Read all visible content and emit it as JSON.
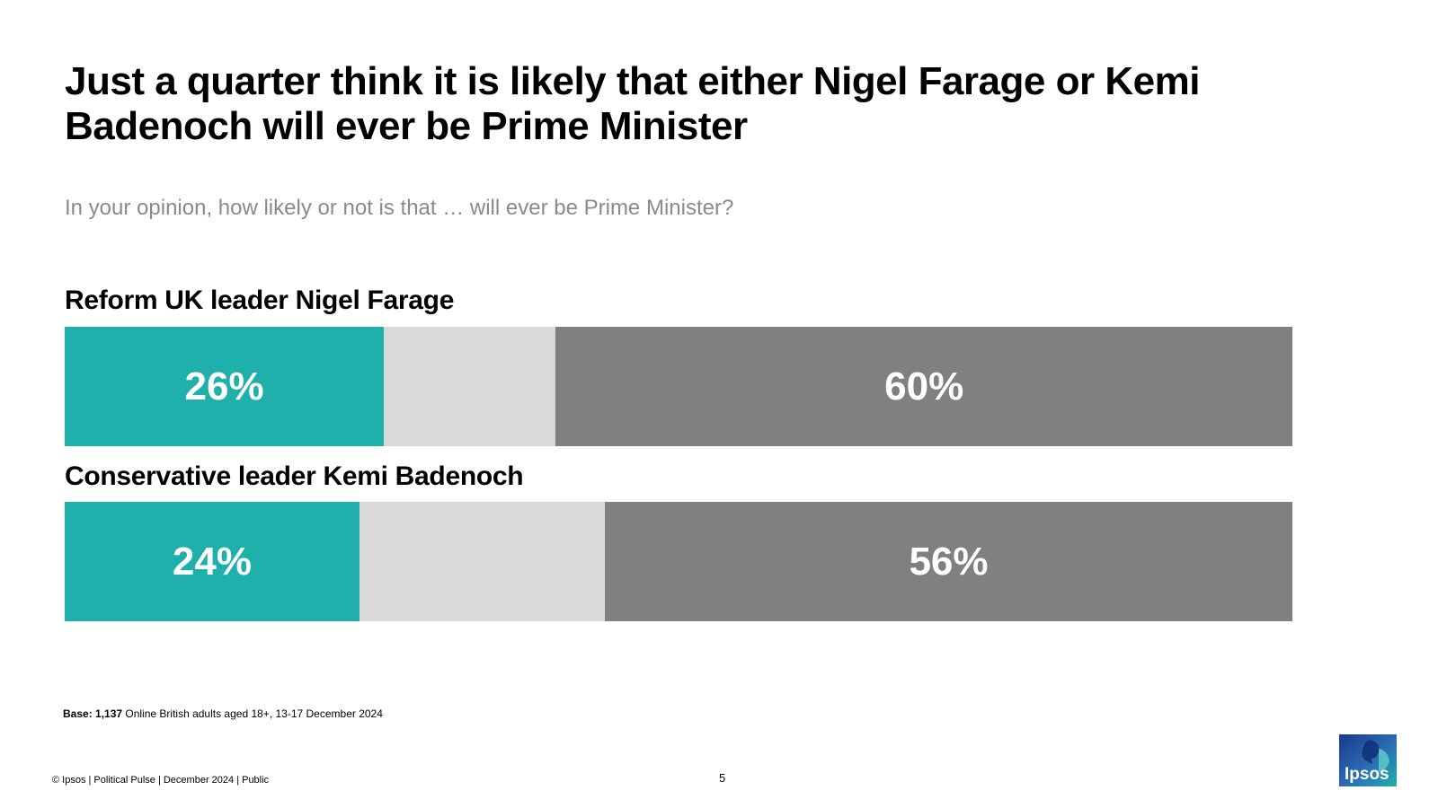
{
  "headline": "Just a quarter think it is likely that either Nigel Farage or Kemi Badenoch will ever be Prime Minister",
  "question": "In your opinion, how likely or not is that … will ever be Prime Minister?",
  "colors": {
    "likely": "#20b0ac",
    "neither": "#d9d9d9",
    "unlikely": "#808080",
    "label_text": "#ffffff"
  },
  "chart_data": {
    "type": "bar",
    "orientation": "horizontal",
    "stacked": true,
    "xlim": [
      0,
      100
    ],
    "categories": [
      "Reform UK leader Nigel Farage",
      "Conservative leader Kemi Badenoch"
    ],
    "series": [
      {
        "values": [
          26,
          24
        ],
        "labels": [
          "26%",
          "24%"
        ]
      },
      {
        "values": [
          14,
          20
        ],
        "labels": [
          "",
          ""
        ]
      },
      {
        "values": [
          60,
          56
        ],
        "labels": [
          "60%",
          "56%"
        ]
      }
    ]
  },
  "base_note": {
    "bold": "Base: 1,137",
    "rest": " Online British adults aged 18+,  13-17 December 2024"
  },
  "footer": "© Ipsos | Political Pulse | December 2024 | Public",
  "page_number": "5",
  "logo": {
    "text": "Ipsos",
    "icon": "ipsos-logo"
  }
}
